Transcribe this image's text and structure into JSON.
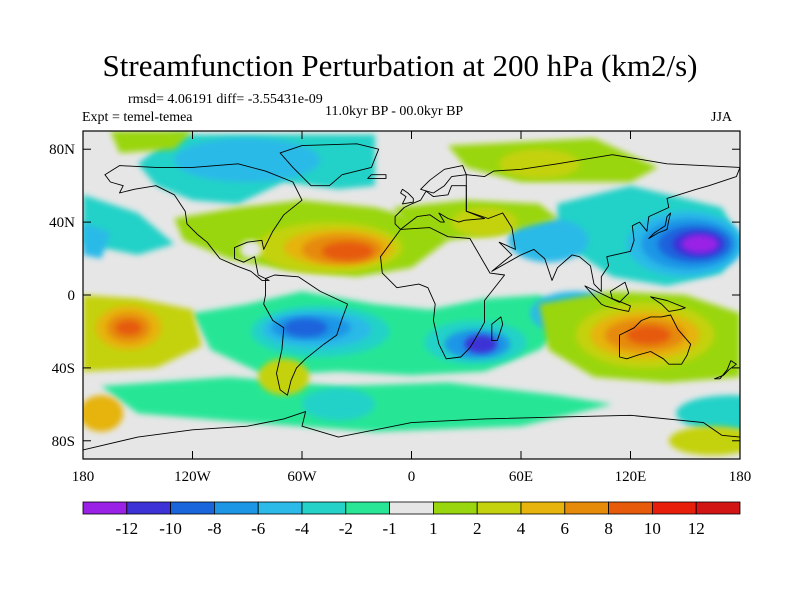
{
  "title": "Streamfunction Perturbation at 200 hPa (km2/s)",
  "stats_line": "rmsd= 4.06191 diff= -3.55431e-09",
  "expt_line": "Expt = temel-temea",
  "period_line": "11.0kyr BP - 00.0kyr BP",
  "season": "JJA",
  "chart_data": {
    "type": "heatmap",
    "title": "Streamfunction Perturbation at 200 hPa (km2/s)",
    "xlabel": "",
    "ylabel": "",
    "xlim": [
      -180,
      180
    ],
    "ylim": [
      -90,
      90
    ],
    "x_ticks": [
      {
        "value": -180,
        "label": "180"
      },
      {
        "value": -120,
        "label": "120W"
      },
      {
        "value": -60,
        "label": "60W"
      },
      {
        "value": 0,
        "label": "0"
      },
      {
        "value": 60,
        "label": "60E"
      },
      {
        "value": 120,
        "label": "120E"
      },
      {
        "value": 180,
        "label": "180"
      }
    ],
    "y_ticks": [
      {
        "value": 80,
        "label": "80N"
      },
      {
        "value": 40,
        "label": "40N"
      },
      {
        "value": 0,
        "label": "0"
      },
      {
        "value": -40,
        "label": "40S"
      },
      {
        "value": -80,
        "label": "80S"
      }
    ],
    "colorbar": {
      "labels": [
        "-12",
        "-10",
        "-8",
        "-6",
        "-4",
        "-2",
        "-1",
        "1",
        "2",
        "4",
        "6",
        "8",
        "10",
        "12"
      ],
      "colors": [
        "#9a22e6",
        "#3d32d6",
        "#1a64dc",
        "#1e96e6",
        "#2cbae8",
        "#24d2c8",
        "#28e696",
        "#e6e6e6",
        "#9ad60e",
        "#c4d20e",
        "#e6b40c",
        "#e68a0a",
        "#e65a0a",
        "#e61e0a",
        "#d21414"
      ]
    },
    "features": [
      {
        "name": "strong negative center NW Pacific",
        "lon": 155,
        "lat": 28,
        "value": -12
      },
      {
        "name": "positive center N Atlantic",
        "lon": -35,
        "lat": 25,
        "value": 9
      },
      {
        "name": "positive center Australia",
        "lon": 130,
        "lat": -22,
        "value": 9
      },
      {
        "name": "positive center S Pacific",
        "lon": -155,
        "lat": -18,
        "value": 9
      },
      {
        "name": "negative center S Atlantic",
        "lon": -50,
        "lat": -18,
        "value": -8
      },
      {
        "name": "negative center S Africa",
        "lon": 38,
        "lat": -27,
        "value": -9
      }
    ]
  }
}
